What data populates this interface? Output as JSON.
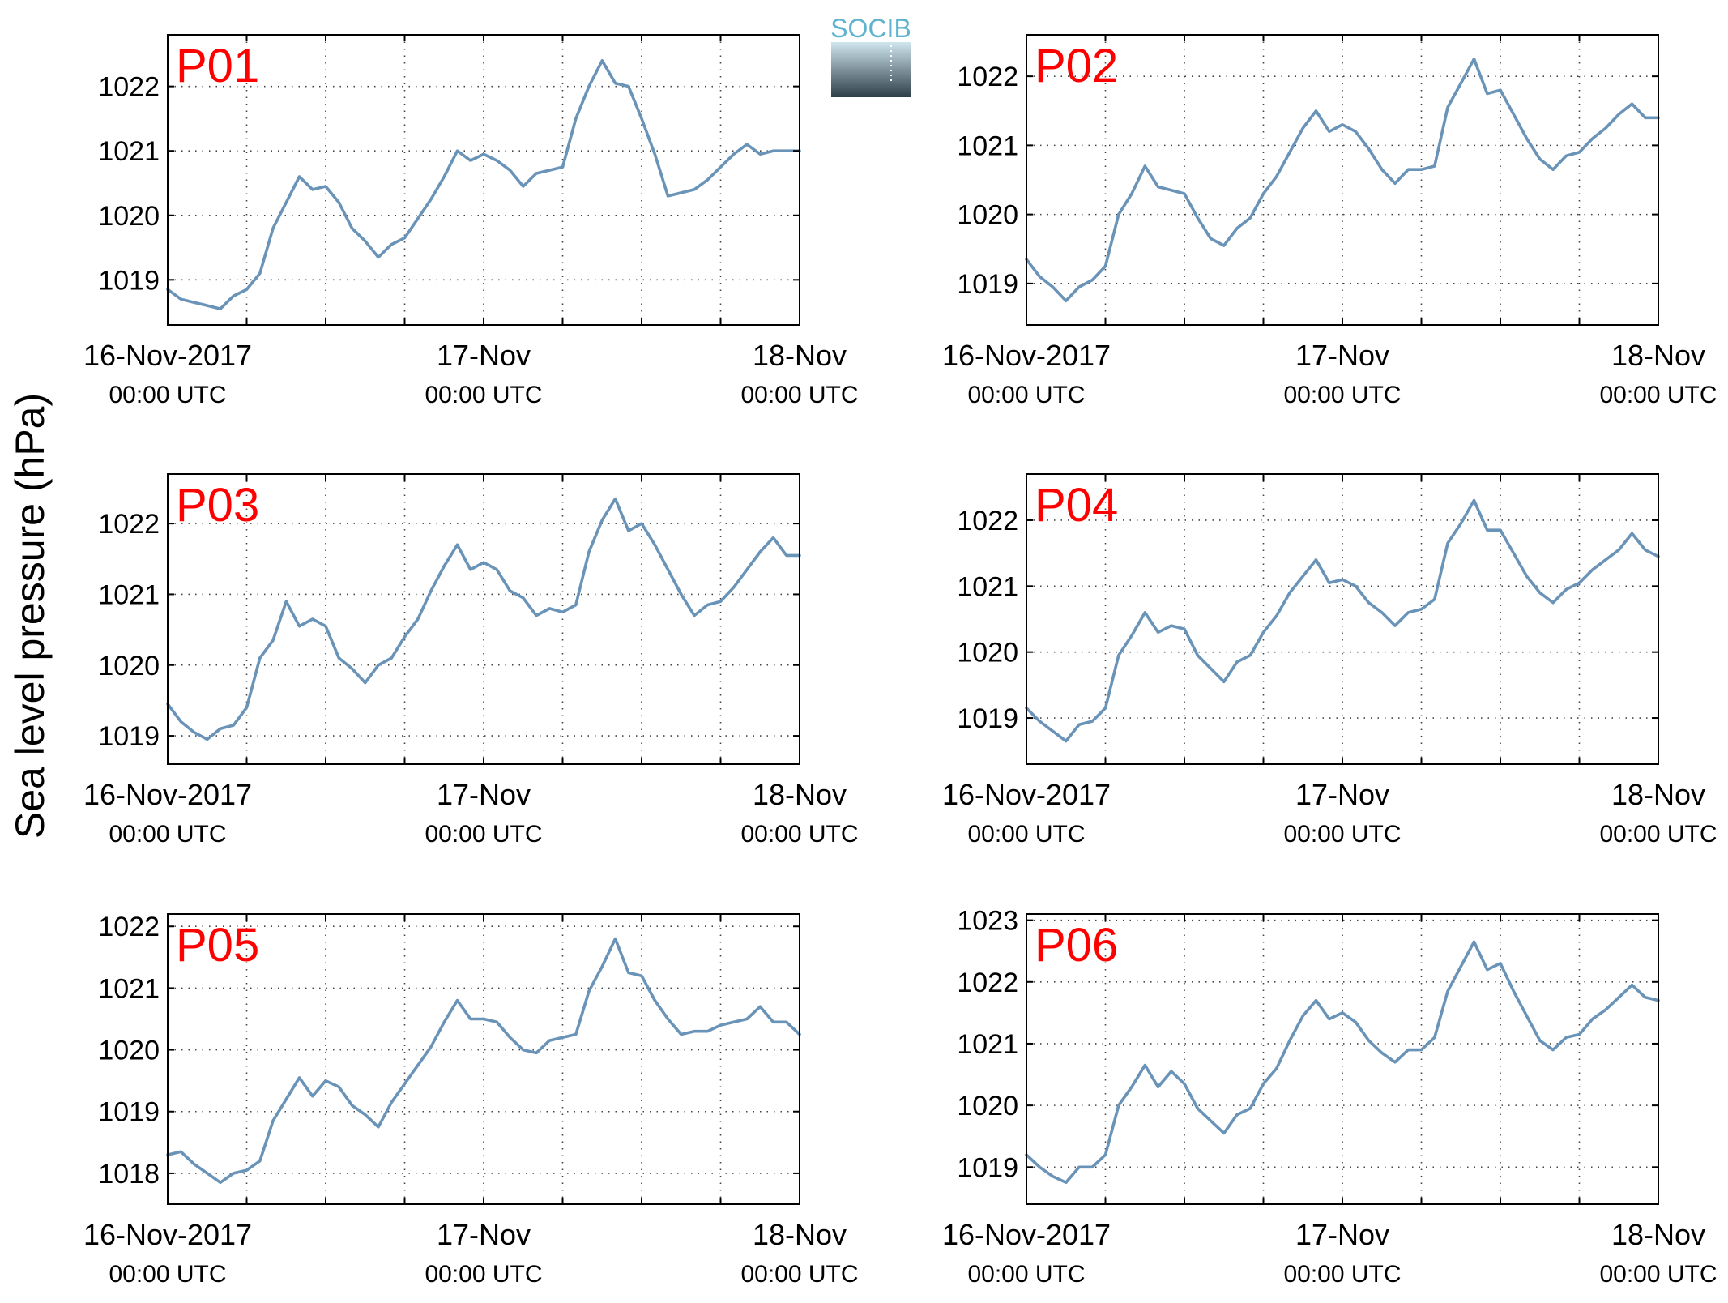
{
  "figure": {
    "ylabel": "Sea level pressure (hPa)",
    "logo_text": "SOCIB",
    "colors": {
      "line": "#6A93B8",
      "panel_label": "#FF0000",
      "axes": "#000000",
      "grid": "#444444",
      "logo_text": "#5FB3CE",
      "logo_top": "#CFE6EE",
      "logo_bottom": "#2E3E49"
    }
  },
  "chart_data": [
    {
      "type": "line",
      "label": "P01",
      "x_ticks": [
        {
          "main": "16-Nov-2017",
          "sub": "00:00 UTC"
        },
        {
          "main": "17-Nov",
          "sub": "00:00 UTC"
        },
        {
          "main": "18-Nov",
          "sub": "00:00 UTC"
        }
      ],
      "xlim": [
        0,
        48
      ],
      "ylim": [
        1018.3,
        1022.8
      ],
      "yticks": [
        1019,
        1020,
        1021,
        1022
      ],
      "grid": true,
      "series": [
        {
          "x": [
            0,
            1,
            2,
            3,
            4,
            5,
            6,
            7,
            8,
            9,
            10,
            11,
            12,
            13,
            14,
            15,
            16,
            17,
            18,
            19,
            20,
            21,
            22,
            23,
            24,
            25,
            26,
            27,
            28,
            29,
            30,
            31,
            32,
            33,
            34,
            35,
            36,
            37,
            38,
            39,
            40,
            41,
            42,
            43,
            44,
            45,
            46,
            47,
            48
          ],
          "values": [
            1018.85,
            1018.7,
            1018.65,
            1018.6,
            1018.55,
            1018.75,
            1018.85,
            1019.1,
            1019.8,
            1020.2,
            1020.6,
            1020.4,
            1020.45,
            1020.2,
            1019.8,
            1019.6,
            1019.35,
            1019.55,
            1019.65,
            1019.95,
            1020.25,
            1020.6,
            1021.0,
            1020.85,
            1020.95,
            1020.85,
            1020.7,
            1020.45,
            1020.65,
            1020.7,
            1020.75,
            1021.5,
            1022.0,
            1022.4,
            1022.05,
            1022.0,
            1021.5,
            1020.95,
            1020.3,
            1020.35,
            1020.4,
            1020.55,
            1020.75,
            1020.95,
            1021.1,
            1020.95,
            1021.0,
            1021.0,
            1021.0
          ]
        }
      ]
    },
    {
      "type": "line",
      "label": "P02",
      "x_ticks": [
        {
          "main": "16-Nov-2017",
          "sub": "00:00 UTC"
        },
        {
          "main": "17-Nov",
          "sub": "00:00 UTC"
        },
        {
          "main": "18-Nov",
          "sub": "00:00 UTC"
        }
      ],
      "xlim": [
        0,
        48
      ],
      "ylim": [
        1018.4,
        1022.6
      ],
      "yticks": [
        1019,
        1020,
        1021,
        1022
      ],
      "grid": true,
      "series": [
        {
          "x": [
            0,
            1,
            2,
            3,
            4,
            5,
            6,
            7,
            8,
            9,
            10,
            11,
            12,
            13,
            14,
            15,
            16,
            17,
            18,
            19,
            20,
            21,
            22,
            23,
            24,
            25,
            26,
            27,
            28,
            29,
            30,
            31,
            32,
            33,
            34,
            35,
            36,
            37,
            38,
            39,
            40,
            41,
            42,
            43,
            44,
            45,
            46,
            47,
            48
          ],
          "values": [
            1019.35,
            1019.1,
            1018.95,
            1018.75,
            1018.95,
            1019.05,
            1019.25,
            1020.0,
            1020.3,
            1020.7,
            1020.4,
            1020.35,
            1020.3,
            1019.95,
            1019.65,
            1019.55,
            1019.8,
            1019.95,
            1020.3,
            1020.55,
            1020.9,
            1021.25,
            1021.5,
            1021.2,
            1021.3,
            1021.2,
            1020.95,
            1020.65,
            1020.45,
            1020.65,
            1020.65,
            1020.7,
            1021.55,
            1021.9,
            1022.25,
            1021.75,
            1021.8,
            1021.45,
            1021.1,
            1020.8,
            1020.65,
            1020.85,
            1020.9,
            1021.1,
            1021.25,
            1021.45,
            1021.6,
            1021.4,
            1021.4
          ]
        }
      ]
    },
    {
      "type": "line",
      "label": "P03",
      "x_ticks": [
        {
          "main": "16-Nov-2017",
          "sub": "00:00 UTC"
        },
        {
          "main": "17-Nov",
          "sub": "00:00 UTC"
        },
        {
          "main": "18-Nov",
          "sub": "00:00 UTC"
        }
      ],
      "xlim": [
        0,
        48
      ],
      "ylim": [
        1018.6,
        1022.7
      ],
      "yticks": [
        1019,
        1020,
        1021,
        1022
      ],
      "grid": true,
      "series": [
        {
          "x": [
            0,
            1,
            2,
            3,
            4,
            5,
            6,
            7,
            8,
            9,
            10,
            11,
            12,
            13,
            14,
            15,
            16,
            17,
            18,
            19,
            20,
            21,
            22,
            23,
            24,
            25,
            26,
            27,
            28,
            29,
            30,
            31,
            32,
            33,
            34,
            35,
            36,
            37,
            38,
            39,
            40,
            41,
            42,
            43,
            44,
            45,
            46,
            47,
            48
          ],
          "values": [
            1019.45,
            1019.2,
            1019.05,
            1018.95,
            1019.1,
            1019.15,
            1019.4,
            1020.1,
            1020.35,
            1020.9,
            1020.55,
            1020.65,
            1020.55,
            1020.1,
            1019.95,
            1019.75,
            1020.0,
            1020.1,
            1020.4,
            1020.65,
            1021.05,
            1021.4,
            1021.7,
            1021.35,
            1021.45,
            1021.35,
            1021.05,
            1020.95,
            1020.7,
            1020.8,
            1020.75,
            1020.85,
            1021.6,
            1022.05,
            1022.35,
            1021.9,
            1022.0,
            1021.7,
            1021.35,
            1021.0,
            1020.7,
            1020.85,
            1020.9,
            1021.1,
            1021.35,
            1021.6,
            1021.8,
            1021.55,
            1021.55
          ]
        }
      ]
    },
    {
      "type": "line",
      "label": "P04",
      "x_ticks": [
        {
          "main": "16-Nov-2017",
          "sub": "00:00 UTC"
        },
        {
          "main": "17-Nov",
          "sub": "00:00 UTC"
        },
        {
          "main": "18-Nov",
          "sub": "00:00 UTC"
        }
      ],
      "xlim": [
        0,
        48
      ],
      "ylim": [
        1018.3,
        1022.7
      ],
      "yticks": [
        1019,
        1020,
        1021,
        1022
      ],
      "grid": true,
      "series": [
        {
          "x": [
            0,
            1,
            2,
            3,
            4,
            5,
            6,
            7,
            8,
            9,
            10,
            11,
            12,
            13,
            14,
            15,
            16,
            17,
            18,
            19,
            20,
            21,
            22,
            23,
            24,
            25,
            26,
            27,
            28,
            29,
            30,
            31,
            32,
            33,
            34,
            35,
            36,
            37,
            38,
            39,
            40,
            41,
            42,
            43,
            44,
            45,
            46,
            47,
            48
          ],
          "values": [
            1019.15,
            1018.95,
            1018.8,
            1018.65,
            1018.9,
            1018.95,
            1019.15,
            1019.95,
            1020.25,
            1020.6,
            1020.3,
            1020.4,
            1020.35,
            1019.95,
            1019.75,
            1019.55,
            1019.85,
            1019.95,
            1020.3,
            1020.55,
            1020.9,
            1021.15,
            1021.4,
            1021.05,
            1021.1,
            1021.0,
            1020.75,
            1020.6,
            1020.4,
            1020.6,
            1020.65,
            1020.8,
            1021.65,
            1021.95,
            1022.3,
            1021.85,
            1021.85,
            1021.5,
            1021.15,
            1020.9,
            1020.75,
            1020.95,
            1021.05,
            1021.25,
            1021.4,
            1021.55,
            1021.8,
            1021.55,
            1021.45
          ]
        }
      ]
    },
    {
      "type": "line",
      "label": "P05",
      "x_ticks": [
        {
          "main": "16-Nov-2017",
          "sub": "00:00 UTC"
        },
        {
          "main": "17-Nov",
          "sub": "00:00 UTC"
        },
        {
          "main": "18-Nov",
          "sub": "00:00 UTC"
        }
      ],
      "xlim": [
        0,
        48
      ],
      "ylim": [
        1017.5,
        1022.2
      ],
      "yticks": [
        1018,
        1019,
        1020,
        1021,
        1022
      ],
      "grid": true,
      "series": [
        {
          "x": [
            0,
            1,
            2,
            3,
            4,
            5,
            6,
            7,
            8,
            9,
            10,
            11,
            12,
            13,
            14,
            15,
            16,
            17,
            18,
            19,
            20,
            21,
            22,
            23,
            24,
            25,
            26,
            27,
            28,
            29,
            30,
            31,
            32,
            33,
            34,
            35,
            36,
            37,
            38,
            39,
            40,
            41,
            42,
            43,
            44,
            45,
            46,
            47,
            48
          ],
          "values": [
            1018.3,
            1018.35,
            1018.15,
            1018.0,
            1017.85,
            1018.0,
            1018.05,
            1018.2,
            1018.85,
            1019.2,
            1019.55,
            1019.25,
            1019.5,
            1019.4,
            1019.1,
            1018.95,
            1018.75,
            1019.15,
            1019.45,
            1019.75,
            1020.05,
            1020.45,
            1020.8,
            1020.5,
            1020.5,
            1020.45,
            1020.2,
            1020.0,
            1019.95,
            1020.15,
            1020.2,
            1020.25,
            1020.95,
            1021.35,
            1021.8,
            1021.25,
            1021.2,
            1020.8,
            1020.5,
            1020.25,
            1020.3,
            1020.3,
            1020.4,
            1020.45,
            1020.5,
            1020.7,
            1020.45,
            1020.45,
            1020.25
          ]
        }
      ]
    },
    {
      "type": "line",
      "label": "P06",
      "x_ticks": [
        {
          "main": "16-Nov-2017",
          "sub": "00:00 UTC"
        },
        {
          "main": "17-Nov",
          "sub": "00:00 UTC"
        },
        {
          "main": "18-Nov",
          "sub": "00:00 UTC"
        }
      ],
      "xlim": [
        0,
        48
      ],
      "ylim": [
        1018.4,
        1023.1
      ],
      "yticks": [
        1019,
        1020,
        1021,
        1022,
        1023
      ],
      "grid": true,
      "series": [
        {
          "x": [
            0,
            1,
            2,
            3,
            4,
            5,
            6,
            7,
            8,
            9,
            10,
            11,
            12,
            13,
            14,
            15,
            16,
            17,
            18,
            19,
            20,
            21,
            22,
            23,
            24,
            25,
            26,
            27,
            28,
            29,
            30,
            31,
            32,
            33,
            34,
            35,
            36,
            37,
            38,
            39,
            40,
            41,
            42,
            43,
            44,
            45,
            46,
            47,
            48
          ],
          "values": [
            1019.2,
            1019.0,
            1018.85,
            1018.75,
            1019.0,
            1019.0,
            1019.2,
            1020.0,
            1020.3,
            1020.65,
            1020.3,
            1020.55,
            1020.35,
            1019.95,
            1019.75,
            1019.55,
            1019.85,
            1019.95,
            1020.35,
            1020.6,
            1021.05,
            1021.45,
            1021.7,
            1021.4,
            1021.5,
            1021.35,
            1021.05,
            1020.85,
            1020.7,
            1020.9,
            1020.9,
            1021.1,
            1021.85,
            1022.25,
            1022.65,
            1022.2,
            1022.3,
            1021.85,
            1021.45,
            1021.05,
            1020.9,
            1021.1,
            1021.15,
            1021.4,
            1021.55,
            1021.75,
            1021.95,
            1021.75,
            1021.7
          ]
        }
      ]
    }
  ]
}
